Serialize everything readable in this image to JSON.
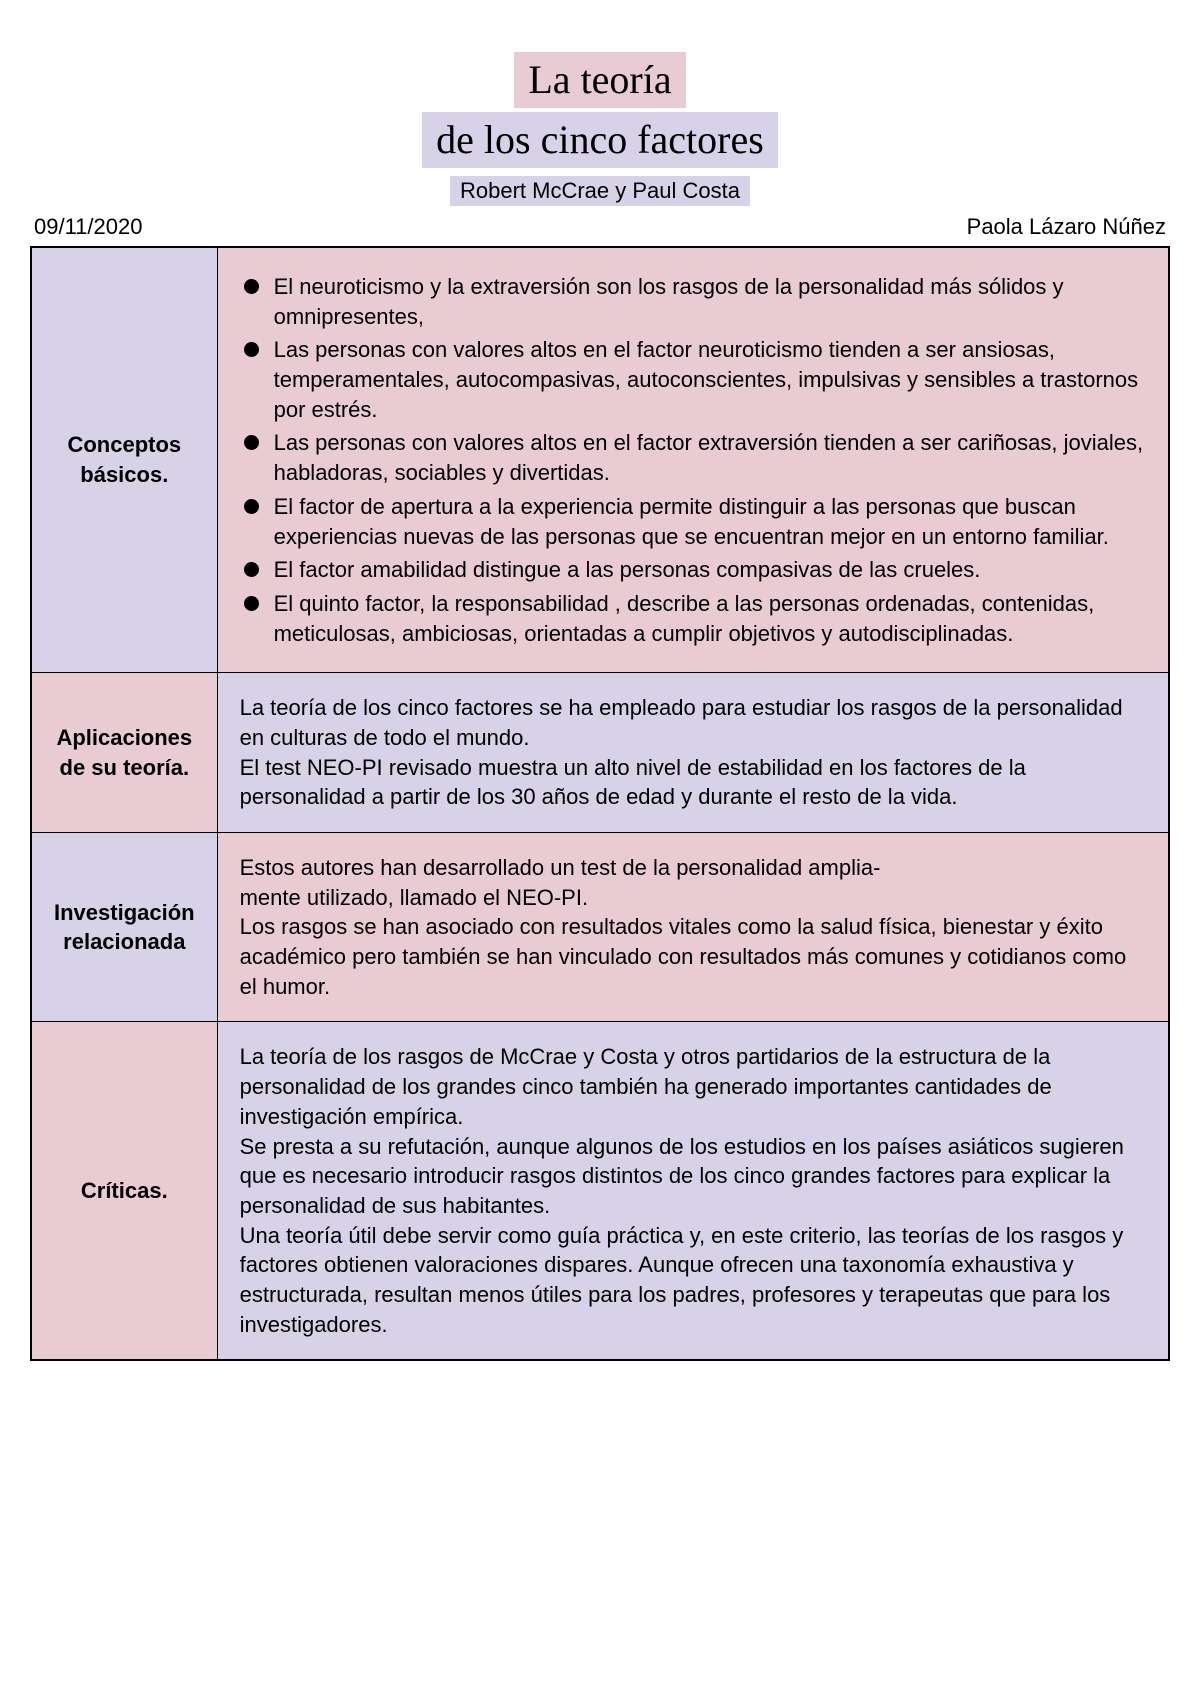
{
  "title_line1": "La teoría",
  "title_line2": "de los cinco factores",
  "authors": "Robert McCrae y Paul Costa",
  "date": "09/11/2020",
  "student": "Paola Lázaro Núñez",
  "rows": [
    {
      "label": "Conceptos básicos.",
      "label_bg": "bg-lilac",
      "content_bg": "bg-pink",
      "bullets": [
        "El neuroticismo y la extraversión son los rasgos de la personalidad más sólidos y omnipresentes,",
        "Las personas con valores altos en el factor neuroticismo tienden a ser ansiosas, temperamentales, autocompasivas, autoconscientes, impulsivas y sensibles a trastornos por estrés.",
        "Las personas con valores altos en el factor extraversión tienden a ser cariñosas, joviales, habladoras, sociables y divertidas.",
        "El factor de apertura a la experiencia permite distinguir a las personas que buscan experiencias nuevas de las personas que se encuentran mejor en un entorno familiar.",
        "El factor amabilidad distingue a las personas compasivas de las crueles.",
        "El quinto factor, la responsabilidad , describe a las personas ordenadas, contenidas, meticulosas, ambiciosas, orientadas a cumplir objetivos y autodisciplinadas."
      ]
    },
    {
      "label": "Aplicaciones de su teoría.",
      "label_bg": "bg-pink",
      "content_bg": "bg-lilac",
      "text": "La teoría de los cinco factores se ha empleado para estudiar los rasgos de la personalidad en culturas de todo el mundo.\nEl test NEO-PI revisado muestra un alto nivel de estabilidad en los factores de la personalidad a partir de los 30 años de edad y durante el resto de la vida."
    },
    {
      "label": "Investigación relacionada",
      "label_bg": "bg-lilac",
      "content_bg": "bg-pink",
      "text": "Estos autores han desarrollado un test de la personalidad amplia-\nmente utilizado, llamado el NEO-PI.\nLos rasgos se han asociado con resultados vitales como la salud física, bienestar y éxito académico pero también se han vinculado con resultados más comunes y cotidianos como el humor."
    },
    {
      "label": "Críticas.",
      "label_bg": "bg-pink",
      "content_bg": "bg-lilac",
      "text": "La teoría de los rasgos de McCrae y Costa y otros partidarios de la estructura de la personalidad de los grandes cinco también ha generado importantes cantidades de investigación empírica.\nSe presta a su refutación, aunque algunos de los estudios en los países asiáticos sugieren que es necesario introducir rasgos distintos de los cinco grandes factores para explicar la personalidad de sus habitantes.\nUna teoría útil debe servir como guía práctica y, en este criterio, las teorías de los rasgos y factores obtienen valoraciones dispares. Aunque ofrecen una taxonomía exhaustiva y estructurada, resultan menos útiles para los padres, profesores y terapeutas que para los investigadores."
    }
  ]
}
